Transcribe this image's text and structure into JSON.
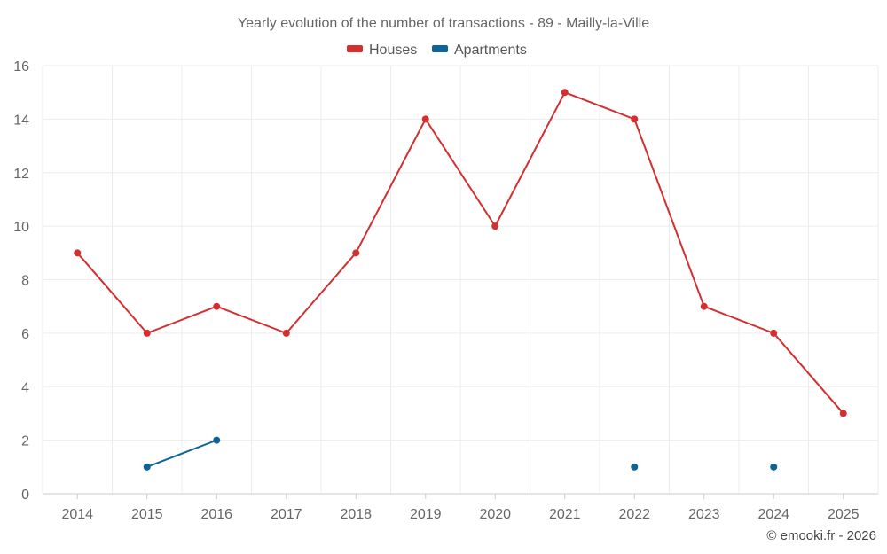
{
  "chart_data": {
    "type": "line",
    "title": "Yearly evolution of the number of transactions - 89 - Mailly-la-Ville",
    "categories": [
      "2014",
      "2015",
      "2016",
      "2017",
      "2018",
      "2019",
      "2020",
      "2021",
      "2022",
      "2023",
      "2024",
      "2025"
    ],
    "ylim": [
      0,
      16
    ],
    "yticks": [
      0,
      2,
      4,
      6,
      8,
      10,
      12,
      14,
      16
    ],
    "grid": true,
    "legend_position": "top-center",
    "series": [
      {
        "name": "Houses",
        "color": "#d32f2f",
        "values": [
          9,
          6,
          7,
          6,
          9,
          14,
          10,
          15,
          14,
          7,
          6,
          3
        ]
      },
      {
        "name": "Apartments",
        "color": "#0f6496",
        "values": [
          null,
          1,
          2,
          null,
          null,
          null,
          null,
          null,
          1,
          null,
          1,
          null
        ]
      }
    ]
  },
  "credit": "© emooki.fr - 2026"
}
